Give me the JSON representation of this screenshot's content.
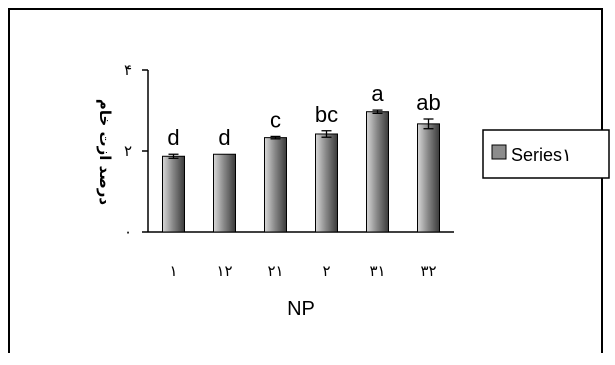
{
  "chart_data": {
    "type": "bar",
    "categories": [
      "١",
      "١٢",
      "٢١",
      "٢",
      "٣١",
      "٣٢"
    ],
    "series": [
      {
        "name": "Series١",
        "values": [
          1.87,
          1.92,
          2.33,
          2.42,
          2.97,
          2.67
        ],
        "errors": [
          0.05,
          0.0,
          0.03,
          0.08,
          0.04,
          0.12
        ]
      }
    ],
    "significance_letters": [
      "d",
      "d",
      "c",
      "bc",
      "a",
      "ab"
    ],
    "xlabel": "NP",
    "ylabel": "درصد ازت خام",
    "ylim": [
      0,
      4
    ],
    "yticks": [
      0,
      2,
      4
    ],
    "ytick_labels": [
      "٠",
      "٢",
      "۴"
    ],
    "grid": false,
    "legend_position": "right",
    "colors": {
      "bar_light": "#d8d8d8",
      "bar_mid": "#8c8c8c",
      "bar_dark": "#3a3a3a",
      "axis": "#000000"
    }
  }
}
